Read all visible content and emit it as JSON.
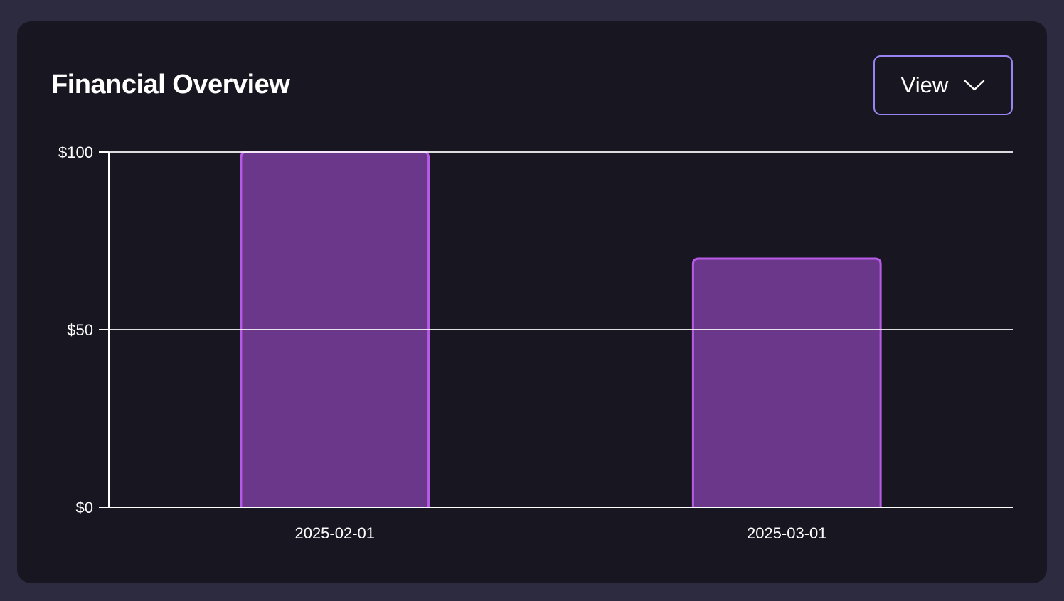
{
  "card": {
    "title": "Financial Overview",
    "view_button": {
      "label": "View",
      "icon": "chevron-down-icon"
    }
  },
  "colors": {
    "background": "#2d2b40",
    "card": "#171621",
    "bar_fill": "#6b378a",
    "bar_stroke": "#b85ae8",
    "button_border": "#9a84f2",
    "axis": "#ffffff"
  },
  "chart_data": {
    "type": "bar",
    "categories": [
      "2025-02-01",
      "2025-03-01"
    ],
    "values": [
      100,
      70
    ],
    "ylim": [
      0,
      100
    ],
    "yticks": [
      0,
      50,
      100
    ],
    "ytick_labels": [
      "$0",
      "$50",
      "$100"
    ],
    "grid": true,
    "xlabel": "",
    "ylabel": ""
  }
}
